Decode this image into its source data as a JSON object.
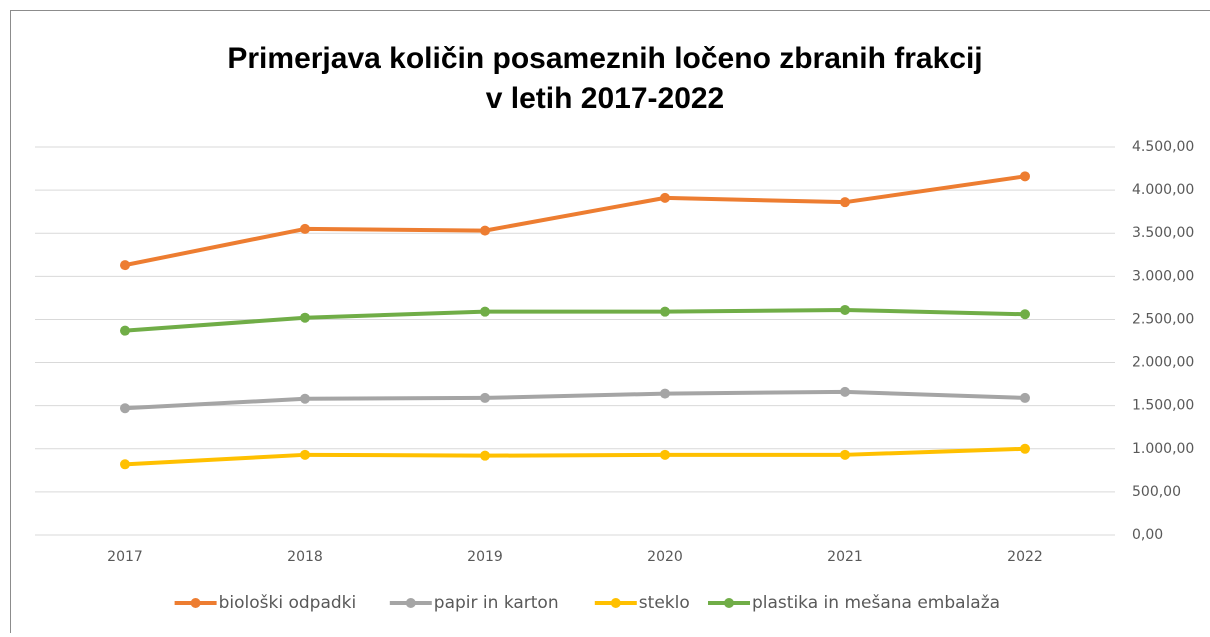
{
  "chart_data": {
    "type": "line",
    "title": [
      "Primerjava količin posameznih ločeno zbranih frakcij",
      "v letih 2017-2022"
    ],
    "categories": [
      "2017",
      "2018",
      "2019",
      "2020",
      "2021",
      "2022"
    ],
    "series": [
      {
        "name": "biološki odpadki",
        "color": "#ed7d31",
        "values": [
          3130,
          3550,
          3530,
          3910,
          3860,
          4160
        ]
      },
      {
        "name": "papir in karton",
        "color": "#a5a5a5",
        "values": [
          1470,
          1580,
          1590,
          1640,
          1660,
          1590
        ]
      },
      {
        "name": "steklo",
        "color": "#ffc000",
        "values": [
          820,
          930,
          920,
          930,
          930,
          1000
        ]
      },
      {
        "name": "plastika in mešana embalaža",
        "color": "#70ad47",
        "values": [
          2370,
          2520,
          2590,
          2590,
          2610,
          2560
        ]
      }
    ],
    "ylim": [
      0,
      4500
    ],
    "yticks": [
      {
        "value": 0,
        "label": "0,00"
      },
      {
        "value": 500,
        "label": "500,00"
      },
      {
        "value": 1000,
        "label": "1.000,00"
      },
      {
        "value": 1500,
        "label": "1.500,00"
      },
      {
        "value": 2000,
        "label": "2.000,00"
      },
      {
        "value": 2500,
        "label": "2.500,00"
      },
      {
        "value": 3000,
        "label": "3.000,00"
      },
      {
        "value": 3500,
        "label": "3.500,00"
      },
      {
        "value": 4000,
        "label": "4.000,00"
      },
      {
        "value": 4500,
        "label": "4.500,00"
      }
    ],
    "y_axis_side": "right",
    "grid": true,
    "legend": "bottom"
  }
}
